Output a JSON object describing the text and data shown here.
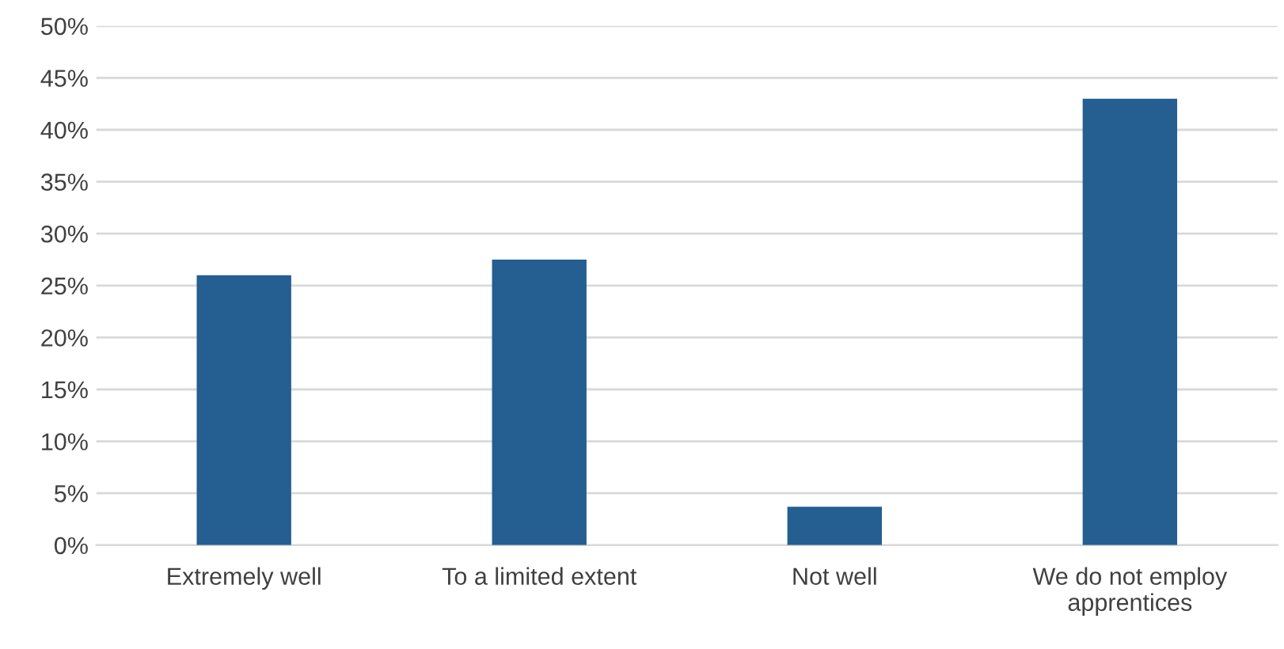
{
  "chart_data": {
    "type": "bar",
    "categories": [
      "Extremely well",
      "To a limited extent",
      "Not well",
      "We do not employ\napprentices"
    ],
    "values": [
      26,
      27.5,
      3.7,
      43
    ],
    "color": "#255e91",
    "ylim": [
      0,
      50
    ],
    "yticks": [
      {
        "value": 0,
        "label": "0%"
      },
      {
        "value": 5,
        "label": "5%"
      },
      {
        "value": 10,
        "label": "10%"
      },
      {
        "value": 15,
        "label": "15%"
      },
      {
        "value": 20,
        "label": "20%"
      },
      {
        "value": 25,
        "label": "25%"
      },
      {
        "value": 30,
        "label": "30%"
      },
      {
        "value": 35,
        "label": "35%"
      },
      {
        "value": 40,
        "label": "40%"
      },
      {
        "value": 45,
        "label": "45%"
      },
      {
        "value": 50,
        "label": "50%"
      }
    ],
    "grid": "y"
  }
}
